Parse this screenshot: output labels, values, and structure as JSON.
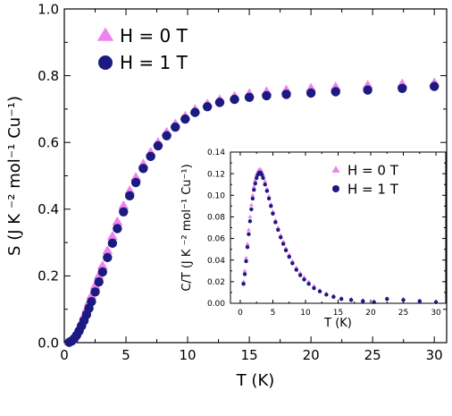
{
  "chart_data": [
    {
      "type": "scatter",
      "panel": "main",
      "xlabel": "T (K)",
      "ylabel": "S (J K ⁻² mol⁻¹ Cu⁻¹)",
      "xlim": [
        0,
        31
      ],
      "ylim": [
        0.0,
        1.0
      ],
      "xticks": [
        "0",
        "5",
        "10",
        "15",
        "20",
        "25",
        "30"
      ],
      "yticks": [
        "0.0",
        "0.2",
        "0.4",
        "0.6",
        "0.8",
        "1.0"
      ],
      "legend_position": "top-left",
      "grid": false,
      "series": [
        {
          "name": "H = 0 T",
          "marker": "triangle",
          "color": "#ee82ee",
          "x": [
            0.4,
            0.6,
            0.8,
            1.0,
            1.2,
            1.4,
            1.6,
            1.8,
            2.0,
            2.2,
            2.5,
            2.8,
            3.1,
            3.5,
            3.9,
            4.3,
            4.8,
            5.3,
            5.8,
            6.4,
            7.0,
            7.6,
            8.3,
            9.0,
            9.8,
            10.6,
            11.6,
            12.6,
            13.8,
            15.0,
            16.4,
            18.0,
            20.0,
            22.0,
            24.6,
            27.4,
            30.0
          ],
          "y": [
            0.002,
            0.008,
            0.018,
            0.03,
            0.045,
            0.062,
            0.08,
            0.1,
            0.12,
            0.14,
            0.17,
            0.2,
            0.23,
            0.275,
            0.318,
            0.362,
            0.41,
            0.455,
            0.495,
            0.535,
            0.57,
            0.6,
            0.63,
            0.655,
            0.678,
            0.698,
            0.715,
            0.728,
            0.738,
            0.746,
            0.752,
            0.757,
            0.762,
            0.766,
            0.771,
            0.775,
            0.778
          ]
        },
        {
          "name": "H = 1 T",
          "marker": "circle",
          "color": "#1a1a80",
          "x": [
            0.4,
            0.6,
            0.8,
            1.0,
            1.2,
            1.4,
            1.6,
            1.8,
            2.0,
            2.2,
            2.5,
            2.8,
            3.1,
            3.5,
            3.9,
            4.3,
            4.8,
            5.3,
            5.8,
            6.4,
            7.0,
            7.6,
            8.3,
            9.0,
            9.8,
            10.6,
            11.6,
            12.6,
            13.8,
            15.0,
            16.4,
            18.0,
            20.0,
            22.0,
            24.6,
            27.4,
            30.0
          ],
          "y": [
            0.001,
            0.005,
            0.012,
            0.022,
            0.035,
            0.05,
            0.066,
            0.084,
            0.103,
            0.123,
            0.152,
            0.182,
            0.212,
            0.255,
            0.298,
            0.342,
            0.392,
            0.44,
            0.48,
            0.522,
            0.558,
            0.59,
            0.62,
            0.646,
            0.67,
            0.69,
            0.707,
            0.72,
            0.729,
            0.735,
            0.74,
            0.744,
            0.748,
            0.752,
            0.757,
            0.762,
            0.768
          ]
        }
      ]
    },
    {
      "type": "scatter",
      "panel": "inset",
      "xlabel": "T (K)",
      "ylabel": "C/T (J K ⁻² mol⁻¹ Cu⁻¹)",
      "xlim": [
        -1.5,
        31.5
      ],
      "ylim": [
        0.0,
        0.14
      ],
      "xticks": [
        "0",
        "5",
        "10",
        "15",
        "20",
        "25",
        "30"
      ],
      "yticks": [
        "0.00",
        "0.02",
        "0.04",
        "0.06",
        "0.08",
        "0.10",
        "0.12",
        "0.14"
      ],
      "legend_position": "top-right",
      "grid": false,
      "series": [
        {
          "name": "H = 0 T",
          "marker": "triangle",
          "color": "#ee82ee",
          "x": [
            0.5,
            0.7,
            0.9,
            1.1,
            1.3,
            1.5,
            1.7,
            1.9,
            2.1,
            2.3,
            2.5,
            2.7,
            2.9,
            3.1,
            3.3,
            3.5,
            3.8,
            4.1,
            4.4,
            4.7,
            5.0,
            5.4,
            5.8,
            6.2,
            6.6,
            7.0,
            7.5,
            8.0,
            8.6,
            9.2,
            9.8,
            10.5,
            11.3,
            12.2,
            13.2,
            14.3,
            15.5,
            17.0,
            18.8,
            20.5,
            22.5,
            25.0,
            27.5,
            30.0
          ],
          "y": [
            0.02,
            0.03,
            0.042,
            0.055,
            0.068,
            0.08,
            0.091,
            0.1,
            0.108,
            0.114,
            0.119,
            0.122,
            0.124,
            0.124,
            0.122,
            0.119,
            0.113,
            0.106,
            0.099,
            0.092,
            0.085,
            0.077,
            0.07,
            0.063,
            0.057,
            0.051,
            0.045,
            0.039,
            0.033,
            0.028,
            0.024,
            0.02,
            0.016,
            0.012,
            0.009,
            0.007,
            0.005,
            0.004,
            0.003,
            0.002,
            0.0045,
            0.004,
            0.002,
            0.001
          ]
        },
        {
          "name": "H = 1 T",
          "marker": "circle",
          "color": "#1a1a80",
          "x": [
            0.5,
            0.7,
            0.9,
            1.1,
            1.3,
            1.5,
            1.7,
            1.9,
            2.1,
            2.3,
            2.5,
            2.7,
            2.9,
            3.1,
            3.3,
            3.5,
            3.8,
            4.1,
            4.4,
            4.7,
            5.0,
            5.4,
            5.8,
            6.2,
            6.6,
            7.0,
            7.5,
            8.0,
            8.6,
            9.2,
            9.8,
            10.5,
            11.3,
            12.2,
            13.2,
            14.3,
            15.5,
            17.0,
            18.8,
            20.5,
            22.5,
            25.0,
            27.5,
            30.0
          ],
          "y": [
            0.018,
            0.027,
            0.039,
            0.052,
            0.064,
            0.076,
            0.087,
            0.097,
            0.105,
            0.111,
            0.116,
            0.119,
            0.121,
            0.121,
            0.119,
            0.116,
            0.11,
            0.104,
            0.097,
            0.09,
            0.083,
            0.075,
            0.068,
            0.061,
            0.055,
            0.049,
            0.043,
            0.037,
            0.031,
            0.026,
            0.022,
            0.018,
            0.014,
            0.011,
            0.008,
            0.006,
            0.004,
            0.003,
            0.002,
            0.001,
            0.004,
            0.003,
            0.002,
            0.001
          ]
        }
      ]
    }
  ]
}
